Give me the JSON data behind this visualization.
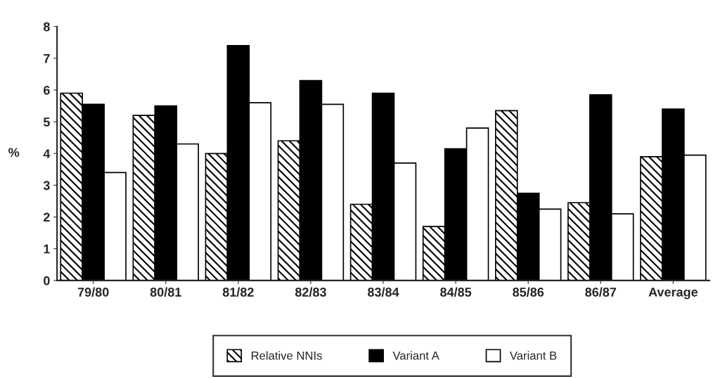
{
  "chart_data": {
    "type": "bar",
    "ylabel": "%",
    "categories": [
      "79/80",
      "80/81",
      "81/82",
      "82/83",
      "83/84",
      "84/85",
      "85/86",
      "86/87",
      "Average"
    ],
    "series": [
      {
        "name": "Relative NNIs",
        "color": "#000000",
        "values": [
          5.9,
          5.2,
          4.0,
          4.4,
          2.4,
          1.7,
          5.35,
          2.45,
          3.9
        ]
      },
      {
        "name": "Variant A",
        "color": "#000000",
        "values": [
          5.55,
          5.5,
          7.4,
          6.3,
          5.9,
          4.15,
          2.75,
          5.85,
          5.4
        ]
      },
      {
        "name": "Variant B",
        "color": "#ffffff",
        "values": [
          3.4,
          4.3,
          5.6,
          5.55,
          3.7,
          4.8,
          2.25,
          2.1,
          3.95
        ]
      }
    ],
    "ylim": [
      0,
      8
    ],
    "yticks": [
      0,
      1,
      2,
      3,
      4,
      5,
      6,
      7,
      8
    ],
    "grid": false,
    "legend": "bottom"
  }
}
